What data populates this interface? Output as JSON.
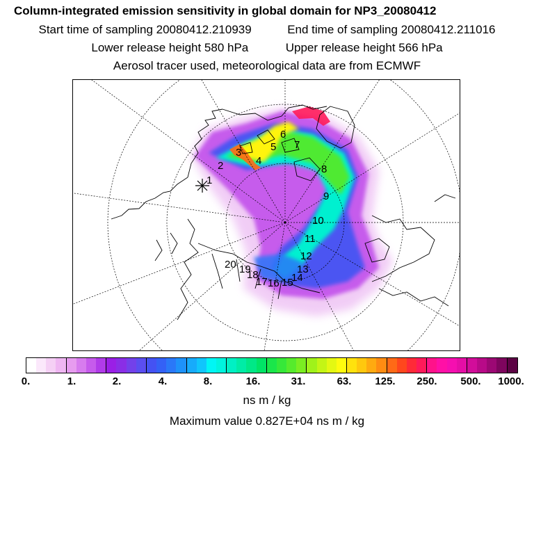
{
  "header": {
    "title": "Column-integrated emission sensitivity in global domain for NP3_20080412",
    "start_label": "Start time of sampling 20080412.210939",
    "end_label": "End time of sampling 20080412.211016",
    "lower_label": "Lower release height  580 hPa",
    "upper_label": "Upper release height  566 hPa",
    "info": "Aerosol tracer used, meteorological data are from ECMWF"
  },
  "map": {
    "markers": [
      "1",
      "2",
      "3",
      "4",
      "5",
      "6",
      "7",
      "8",
      "9",
      "10",
      "11",
      "12",
      "13",
      "14",
      "15",
      "16",
      "17",
      "18",
      "19",
      "20"
    ]
  },
  "colorbar": {
    "tick_labels": [
      "0.",
      "1.",
      "2.",
      "4.",
      "8.",
      "16.",
      "31.",
      "63.",
      "125.",
      "250.",
      "500.",
      "1000."
    ],
    "colors": [
      "#ffffff",
      "#fbe8fb",
      "#f5d0f5",
      "#efb6f2",
      "#e79cef",
      "#d77cee",
      "#c65bec",
      "#b13be9",
      "#9a1fe6",
      "#8a2ee6",
      "#7341ea",
      "#5b4ef0",
      "#4452f3",
      "#3461f6",
      "#2a78f8",
      "#1e92fa",
      "#17abfb",
      "#10c6fc",
      "#00f6f5",
      "#00f4de",
      "#00f0c4",
      "#00eca6",
      "#00e887",
      "#00e466",
      "#1ae64a",
      "#36e839",
      "#56eb2c",
      "#7aee22",
      "#a0f21a",
      "#c4f515",
      "#e4f812",
      "#fffb0e",
      "#ffe20d",
      "#ffc80e",
      "#ffaa10",
      "#ff8c12",
      "#ff6a16",
      "#ff471d",
      "#ff2a38",
      "#ff1a5a",
      "#ff128a",
      "#ff10a6",
      "#f50fb0",
      "#e50ea6",
      "#d20d9a",
      "#b80a88",
      "#9c0874",
      "#7e055e",
      "#5c0244"
    ],
    "units": "ns m / kg"
  },
  "footer": {
    "max_value": "Maximum value  0.827E+04 ns m / kg"
  }
}
